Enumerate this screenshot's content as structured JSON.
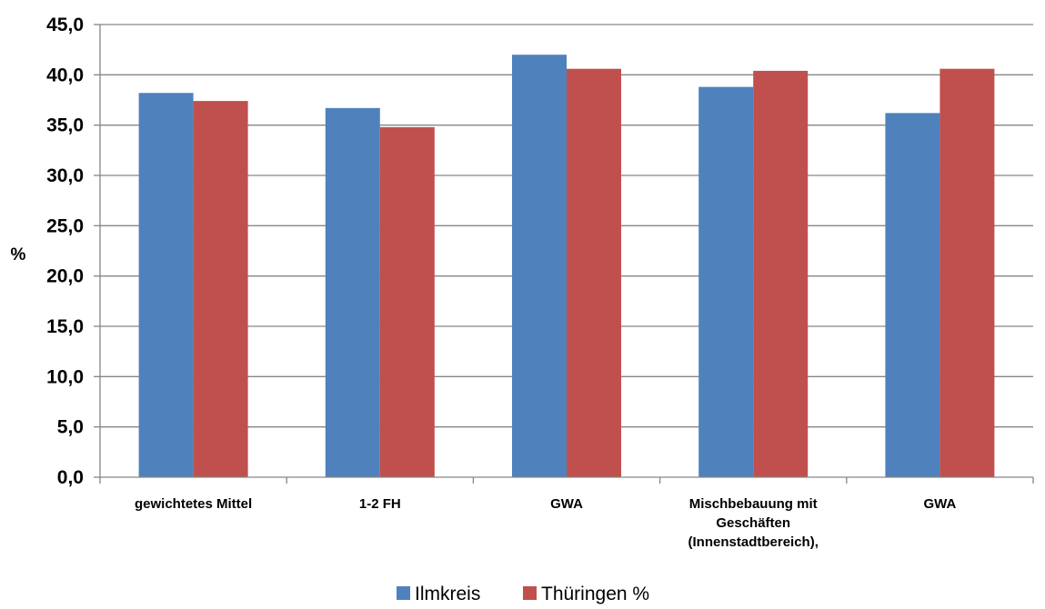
{
  "chart_data": {
    "type": "bar",
    "ylabel": "%",
    "xlabel": "",
    "ylim": [
      0,
      45
    ],
    "ytick_step": 5,
    "ytick_labels": [
      "0,0",
      "5,0",
      "10,0",
      "15,0",
      "20,0",
      "25,0",
      "30,0",
      "35,0",
      "40,0",
      "45,0"
    ],
    "grid": true,
    "legend_position": "bottom",
    "categories": [
      [
        "gewichtetes Mittel"
      ],
      [
        "1-2 FH"
      ],
      [
        "GWA"
      ],
      [
        "Mischbebauung mit",
        "Geschäften",
        "(Innenstadtbereich),"
      ],
      [
        "GWA"
      ]
    ],
    "series": [
      {
        "name": "Ilmkreis",
        "color": "#4f81bd",
        "values": [
          38.2,
          36.7,
          42.0,
          38.8,
          36.2
        ]
      },
      {
        "name": "Thüringen %",
        "color": "#c0504d",
        "values": [
          37.4,
          34.8,
          40.6,
          40.4,
          40.6
        ]
      }
    ],
    "gridline_color": "#868686",
    "axis_color": "#868686"
  }
}
